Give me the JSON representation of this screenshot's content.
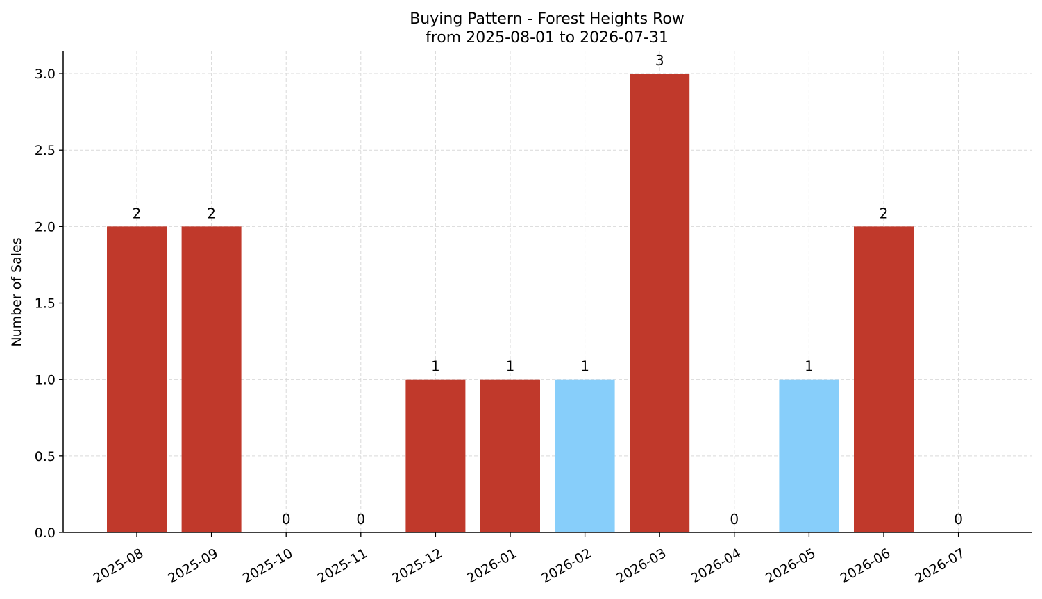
{
  "chart_data": {
    "type": "bar",
    "title": "Buying Pattern - Forest Heights Row",
    "subtitle": "from 2025-08-01 to 2026-07-31",
    "xlabel": "",
    "ylabel": "Number of Sales",
    "categories": [
      "2025-08",
      "2025-09",
      "2025-10",
      "2025-11",
      "2025-12",
      "2026-01",
      "2026-02",
      "2026-03",
      "2026-04",
      "2026-05",
      "2026-06",
      "2026-07"
    ],
    "values": [
      2,
      2,
      0,
      0,
      1,
      1,
      1,
      3,
      0,
      1,
      2,
      0
    ],
    "bar_colors": [
      "#c0392b",
      "#c0392b",
      "#c0392b",
      "#c0392b",
      "#c0392b",
      "#c0392b",
      "#87cefa",
      "#c0392b",
      "#c0392b",
      "#87cefa",
      "#c0392b",
      "#c0392b"
    ],
    "ylim": [
      0,
      3.15
    ],
    "yticks": [
      "0.0",
      "0.5",
      "1.0",
      "1.5",
      "2.0",
      "2.5",
      "3.0"
    ],
    "ytick_values": [
      0,
      0.5,
      1.0,
      1.5,
      2.0,
      2.5,
      3.0
    ],
    "grid": true,
    "legend": "none"
  }
}
